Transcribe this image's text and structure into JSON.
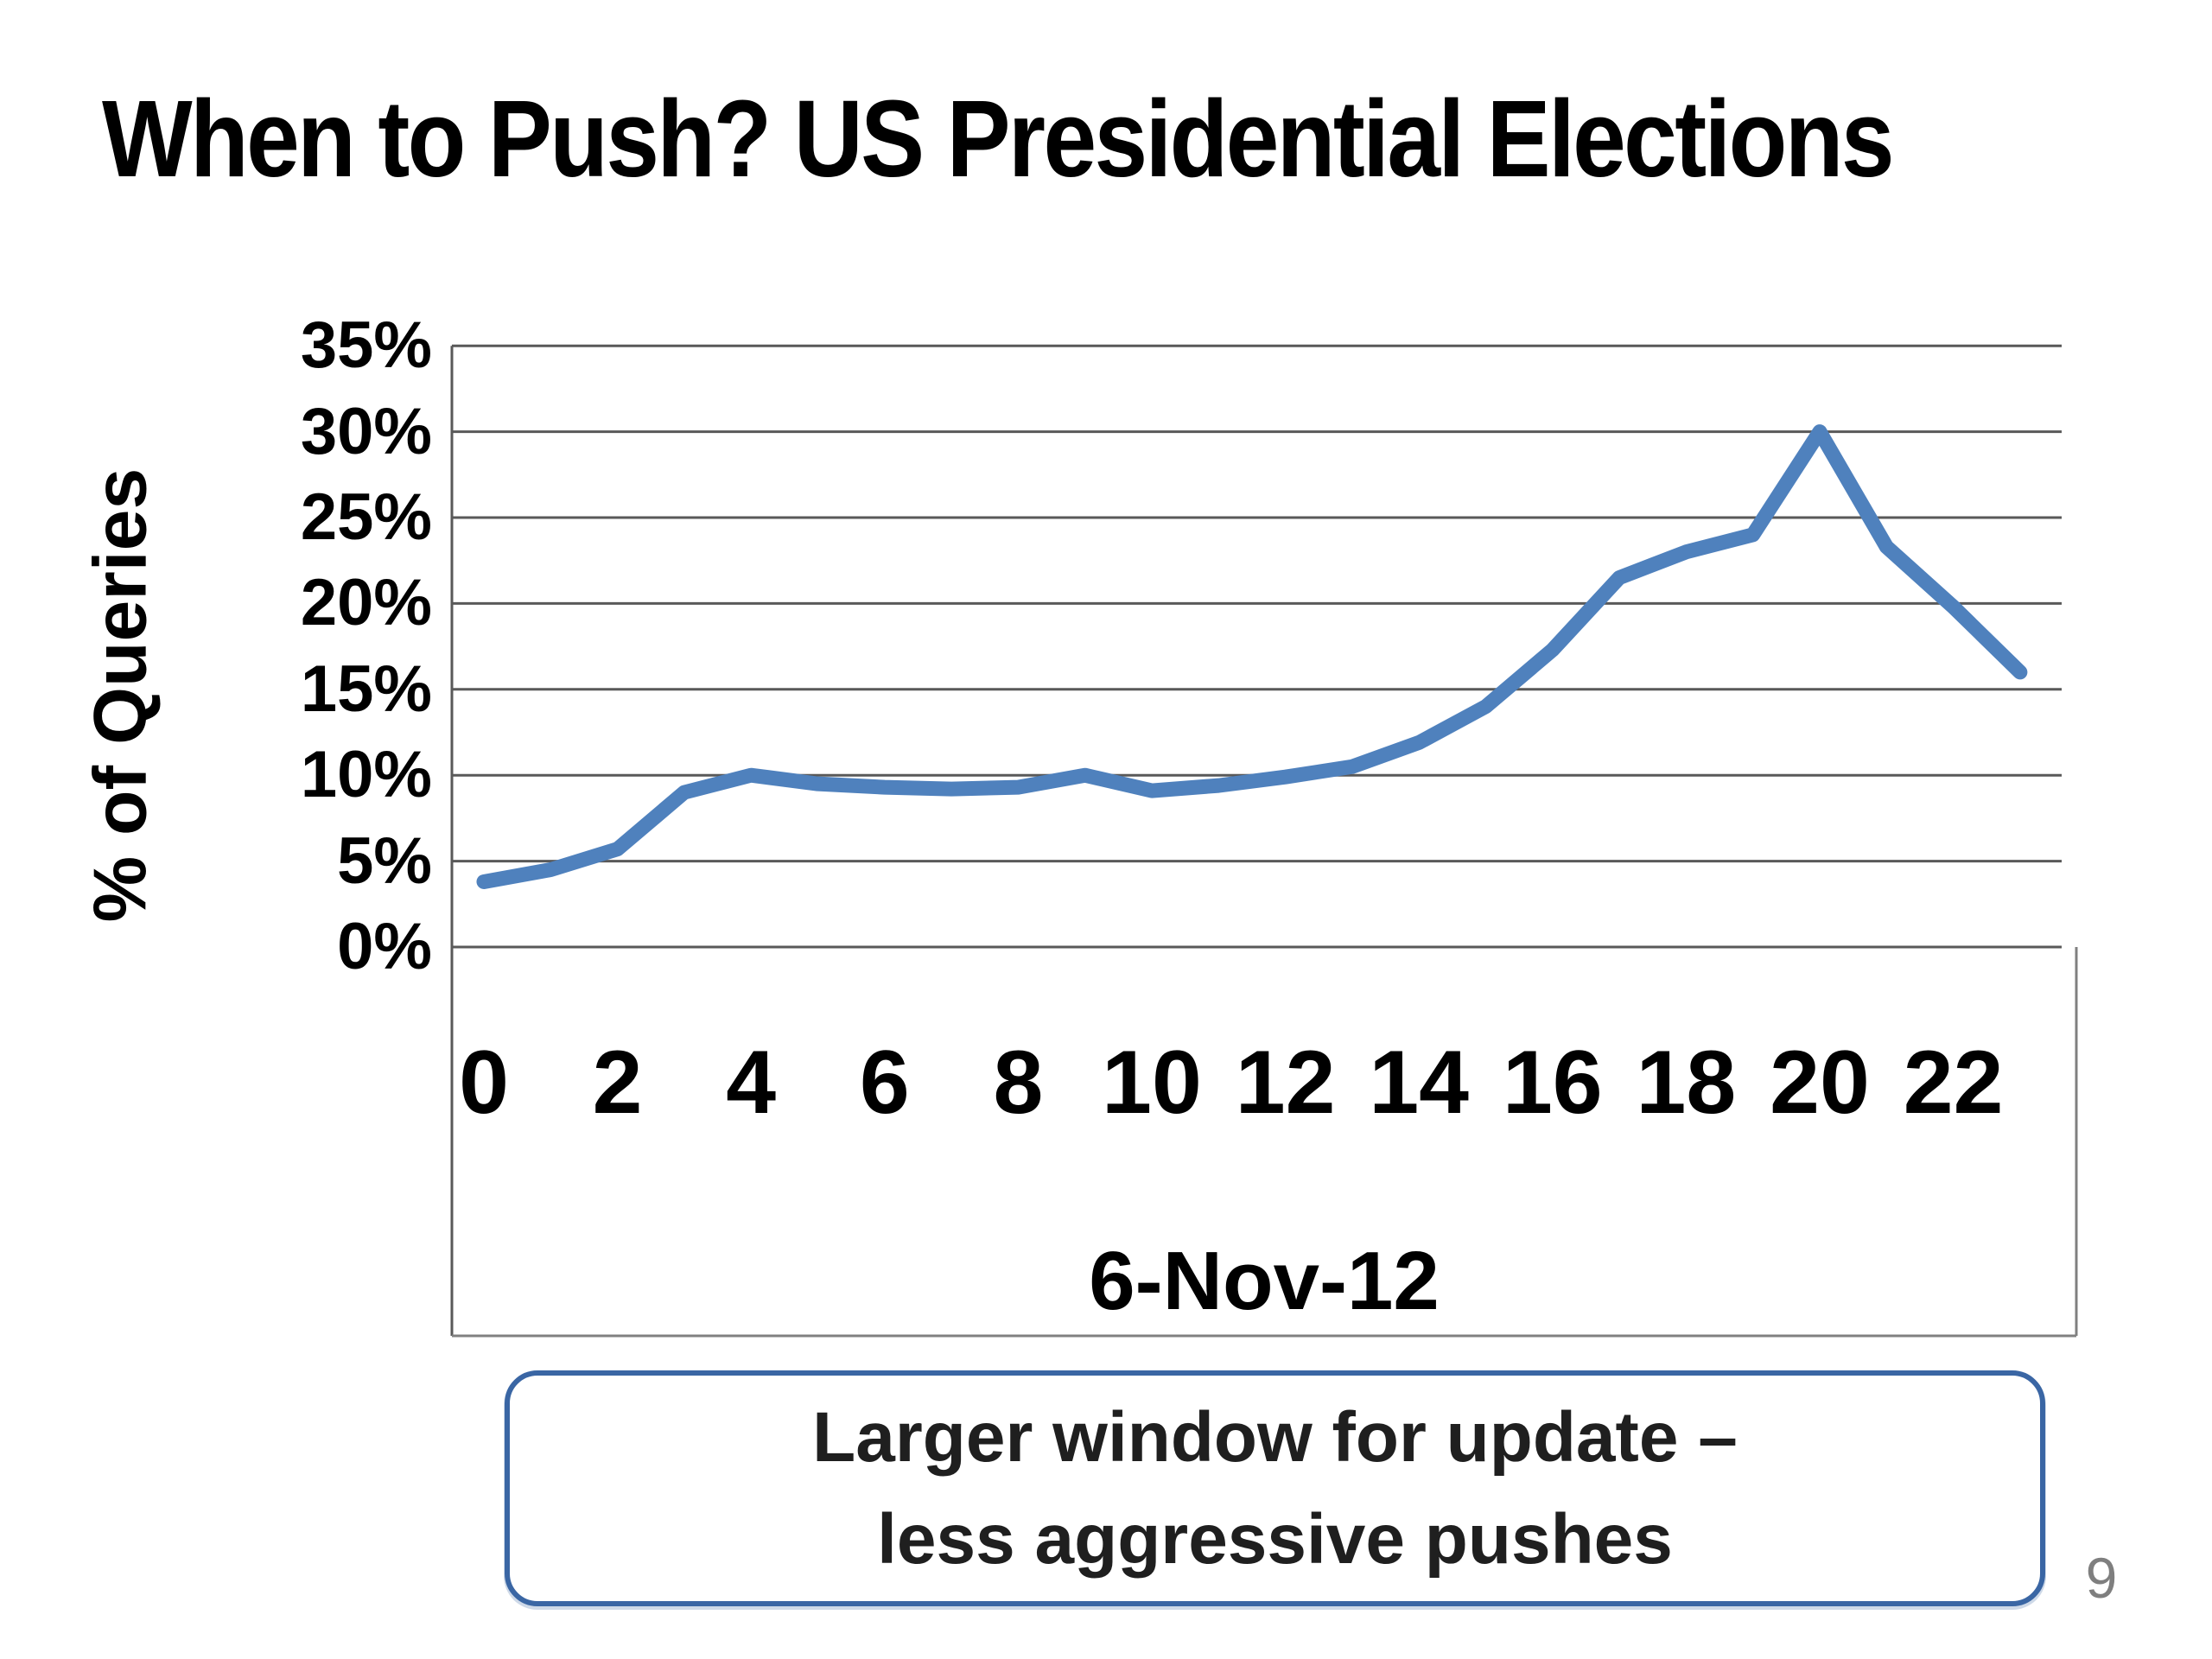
{
  "slide": {
    "title": "When to Push? US Presidential Elections",
    "page_number": "9"
  },
  "chart_data": {
    "type": "line",
    "title": "When to Push? US Presidential Elections",
    "ylabel": "% of Queries",
    "xaxis_title": "6-Nov-12",
    "x": [
      0,
      1,
      2,
      3,
      4,
      5,
      6,
      7,
      8,
      9,
      10,
      11,
      12,
      13,
      14,
      15,
      16,
      17,
      18,
      19,
      20,
      21,
      22,
      23
    ],
    "values": [
      3.8,
      4.5,
      5.7,
      9.0,
      10.0,
      9.5,
      9.3,
      9.2,
      9.3,
      10.0,
      9.1,
      9.4,
      9.9,
      10.5,
      11.9,
      14.0,
      17.3,
      21.5,
      23.0,
      24.0,
      30.0,
      23.3,
      19.8,
      16.0
    ],
    "xticks": [
      "0",
      "2",
      "4",
      "6",
      "8",
      "10",
      "12",
      "14",
      "16",
      "18",
      "20",
      "22"
    ],
    "yticks": [
      "0%",
      "5%",
      "10%",
      "15%",
      "20%",
      "25%",
      "30%",
      "35%"
    ],
    "ylim": [
      0,
      35
    ],
    "ytick_step_pct": 5,
    "grid": true,
    "legend": "none",
    "line_color": "#4F81BD",
    "gridline_color": "#595959",
    "axis_band_color": "#808080"
  },
  "callout": {
    "line1": "Larger window for update –",
    "line2": "less aggressive pushes"
  }
}
